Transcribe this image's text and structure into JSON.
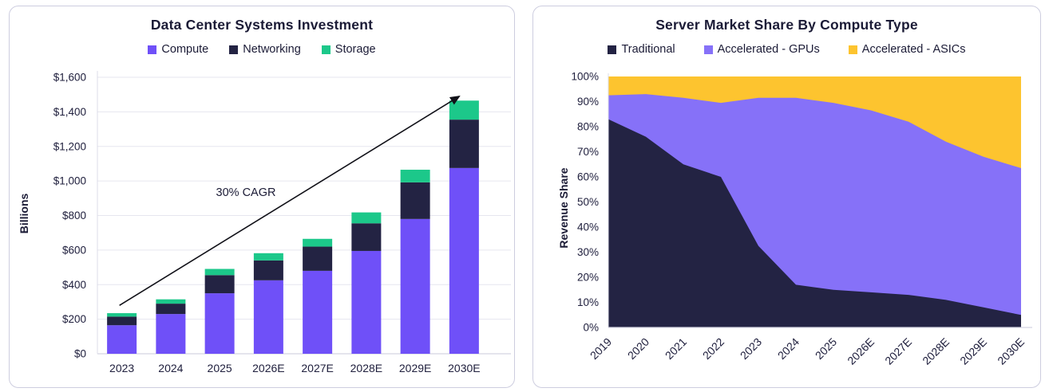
{
  "chart_data": [
    {
      "type": "bar",
      "stacked": true,
      "title": "Data Center Systems Investment",
      "ylabel": "Billions",
      "xlabel": "",
      "categories": [
        "2023",
        "2024",
        "2025",
        "2026E",
        "2027E",
        "2028E",
        "2029E",
        "2030E"
      ],
      "series": [
        {
          "name": "Compute",
          "color": "#6F50F8",
          "values": [
            165,
            230,
            350,
            425,
            480,
            595,
            780,
            1075
          ]
        },
        {
          "name": "Networking",
          "color": "#232343",
          "values": [
            50,
            60,
            105,
            115,
            140,
            160,
            212,
            280
          ]
        },
        {
          "name": "Storage",
          "color": "#1CC88A",
          "values": [
            20,
            25,
            36,
            42,
            45,
            63,
            73,
            110
          ]
        }
      ],
      "ylim": [
        0,
        1600
      ],
      "yticks": [
        "$0",
        "$200",
        "$400",
        "$600",
        "$800",
        "$1,000",
        "$1,200",
        "$1,400",
        "$1,600"
      ],
      "grid": true,
      "legend_position": "top",
      "annotation": {
        "text": "30% CAGR"
      }
    },
    {
      "type": "area",
      "stacked": true,
      "percent": true,
      "title": "Server Market Share By Compute Type",
      "ylabel": "Revenue Share",
      "xlabel": "",
      "categories": [
        "2019",
        "2020",
        "2021",
        "2022",
        "2023",
        "2024",
        "2025",
        "2026E",
        "2027E",
        "2028E",
        "2029E",
        "2030E"
      ],
      "series": [
        {
          "name": "Traditional",
          "color": "#232343",
          "values": [
            83,
            76,
            65,
            60,
            32.5,
            17,
            15,
            14,
            13,
            11,
            8,
            5
          ]
        },
        {
          "name": "Accelerated - GPUs",
          "color": "#8671F8",
          "values": [
            9.5,
            17,
            26.5,
            29.5,
            59,
            74.5,
            74.5,
            72.5,
            69,
            63,
            60,
            58.5
          ]
        },
        {
          "name": "Accelerated - ASICs",
          "color": "#FDC42F",
          "values": [
            7.5,
            7,
            8.5,
            10.5,
            8.5,
            8.5,
            10.5,
            13.5,
            18,
            26,
            32,
            36.5
          ]
        }
      ],
      "ylim": [
        0,
        100
      ],
      "yticks": [
        "0%",
        "10%",
        "20%",
        "30%",
        "40%",
        "50%",
        "60%",
        "70%",
        "80%",
        "90%",
        "100%"
      ],
      "grid": false,
      "legend_position": "top"
    }
  ]
}
